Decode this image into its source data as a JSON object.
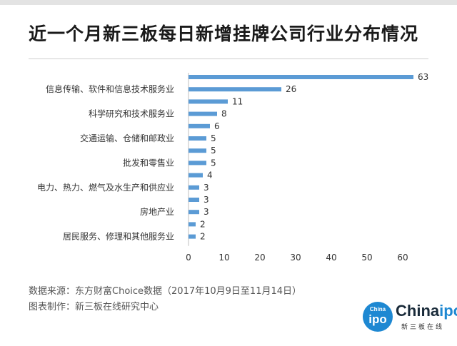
{
  "title": "近一个月新三板每日新增挂牌公司行业分布情况",
  "chart_data": {
    "type": "bar",
    "orientation": "horizontal",
    "title": "近一个月新三板每日新增挂牌公司行业分布情况",
    "category_labels": [
      "",
      "信息传输、软件和信息技术服务业",
      "",
      "科学研究和技术服务业",
      "",
      "交通运输、仓储和邮政业",
      "",
      "批发和零售业",
      "",
      "电力、热力、燃气及水生产和供应业",
      "",
      "房地产业",
      "",
      "居民服务、修理和其他服务业"
    ],
    "values": [
      63,
      26,
      11,
      8,
      6,
      5,
      5,
      5,
      4,
      3,
      3,
      3,
      2,
      2
    ],
    "xlim": [
      0,
      60
    ],
    "xticks": [
      0,
      10,
      20,
      30,
      40,
      50,
      60
    ],
    "bar_color": "#5b9bd5",
    "grid": false,
    "legend": "none",
    "data_labels": true
  },
  "source": {
    "data_source": "数据来源：东方财富Choice数据（2017年10月9日至11月14日）",
    "made_by": "图表制作：新三板在线研究中心"
  },
  "logo": {
    "circle_top": "China",
    "circle_main": "ipo",
    "word_dark": "China",
    "word_blue": "ipo",
    "subtitle": "新三板在线"
  }
}
